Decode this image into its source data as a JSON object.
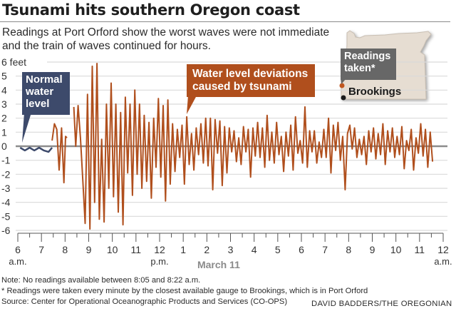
{
  "header": {
    "title": "Tsunami hits southern Oregon coast",
    "subtitle": "Readings at Port Orford show the worst waves were not immediate and the train of waves continued for hours."
  },
  "callouts": {
    "normal": "Normal water level",
    "tsunami": "Water level deviations caused by tsunami",
    "readings": "Readings taken*",
    "brookings": "Brookings"
  },
  "colors": {
    "tsunami": "#b04f1d",
    "normal": "#3d4a6b",
    "zero_line": "#8c8c8c",
    "grid": "#d9d9d9",
    "map_fill": "#e6ddd2",
    "readings_dot": "#c0561f",
    "brookings_dot": "#1a1a1a"
  },
  "footer": {
    "note1": "Note: No readings available between 8:05 and 8:22 a.m.",
    "note2": "* Readings were taken every minute by the closest available gauge to Brookings, which is in Port Orford",
    "source": "Source: Center for Operational Oceanographic Products and Services (CO-OPS)",
    "credit": "DAVID BADDERS/THE OREGONIAN"
  },
  "chart_data": {
    "type": "line",
    "title": "Tsunami hits southern Oregon coast",
    "xlabel": "March 11",
    "ylabel": "feet",
    "ylim": [
      -6,
      6
    ],
    "xlim_hours": [
      6,
      24
    ],
    "grid": true,
    "y_ticks": [
      "6 feet",
      "5",
      "4",
      "3",
      "2",
      "1",
      "0",
      "-1",
      "-2",
      "-3",
      "-4",
      "-5",
      "-6"
    ],
    "x_ticks": [
      {
        "label": "6",
        "sub": "a.m."
      },
      {
        "label": "7",
        "sub": ""
      },
      {
        "label": "8",
        "sub": ""
      },
      {
        "label": "9",
        "sub": ""
      },
      {
        "label": "10",
        "sub": ""
      },
      {
        "label": "11",
        "sub": ""
      },
      {
        "label": "12",
        "sub": "p.m."
      },
      {
        "label": "1",
        "sub": ""
      },
      {
        "label": "2",
        "sub": ""
      },
      {
        "label": "3",
        "sub": ""
      },
      {
        "label": "4",
        "sub": ""
      },
      {
        "label": "5",
        "sub": ""
      },
      {
        "label": "6",
        "sub": ""
      },
      {
        "label": "7",
        "sub": ""
      },
      {
        "label": "8",
        "sub": ""
      },
      {
        "label": "9",
        "sub": ""
      },
      {
        "label": "10",
        "sub": ""
      },
      {
        "label": "11",
        "sub": ""
      },
      {
        "label": "12",
        "sub": "a.m."
      }
    ],
    "series": [
      {
        "name": "Normal water level",
        "color": "#3d4a6b",
        "x_hours": [
          6.1,
          6.3,
          6.5,
          6.7,
          6.9,
          7.1,
          7.3,
          7.45
        ],
        "values": [
          -0.1,
          -0.3,
          -0.1,
          -0.3,
          -0.1,
          -0.3,
          -0.4,
          -0.1
        ]
      },
      {
        "name": "Water level deviations caused by tsunami",
        "color": "#b04f1d",
        "segments": [
          {
            "x_hours": [
              7.45,
              7.55,
              7.65,
              7.75,
              7.85,
              7.95,
              8.02,
              8.08
            ],
            "values": [
              0.4,
              1.6,
              1.2,
              -1.7,
              1.3,
              -2.6,
              0.7,
              0.6
            ]
          },
          {
            "x_hours": [
              8.37,
              8.45,
              8.55,
              8.65,
              8.75,
              8.85,
              8.95,
              9.05,
              9.15,
              9.25,
              9.35,
              9.45,
              9.55,
              9.65,
              9.75,
              9.85,
              9.95,
              10.05,
              10.15,
              10.25,
              10.35,
              10.45,
              10.55,
              10.65,
              10.75,
              10.85,
              10.95,
              11.05,
              11.15,
              11.25,
              11.35,
              11.45,
              11.55,
              11.65,
              11.75,
              11.85,
              11.95,
              12.05,
              12.15,
              12.25,
              12.35,
              12.45,
              12.55,
              12.65,
              12.75,
              12.85,
              12.95,
              13.05,
              13.15,
              13.25,
              13.35,
              13.45,
              13.55,
              13.65,
              13.75,
              13.85,
              13.95,
              14.05,
              14.15,
              14.25,
              14.35,
              14.45,
              14.55,
              14.65,
              14.75,
              14.85,
              14.95,
              15.05,
              15.15,
              15.25,
              15.35,
              15.45,
              15.55,
              15.65,
              15.75,
              15.85,
              15.95,
              16.05,
              16.15,
              16.25,
              16.35,
              16.45,
              16.55,
              16.65,
              16.75,
              16.85,
              16.95,
              17.05,
              17.15,
              17.25,
              17.35,
              17.45,
              17.55,
              17.65,
              17.75,
              17.85,
              17.95,
              18.05,
              18.15,
              18.25,
              18.35,
              18.45,
              18.55,
              18.65,
              18.75,
              18.85,
              18.95,
              19.05,
              19.15,
              19.25,
              19.35,
              19.45,
              19.55,
              19.65,
              19.75,
              19.85,
              19.95,
              20.05,
              20.15,
              20.25,
              20.35,
              20.45,
              20.55,
              20.65,
              20.75,
              20.85,
              20.95,
              21.05,
              21.15,
              21.25,
              21.35,
              21.45,
              21.55,
              21.65,
              21.75,
              21.85,
              21.95,
              22.05,
              22.15,
              22.25,
              22.35,
              22.45,
              22.55,
              22.65,
              22.75,
              22.85,
              22.95,
              23.05,
              23.15,
              23.25,
              23.35,
              23.45,
              23.55,
              23.65,
              23.75,
              23.85,
              23.95
            ],
            "values": [
              2.8,
              0.0,
              2.9,
              0.6,
              -2.4,
              -5.5,
              3.7,
              -5.9,
              5.7,
              -4.0,
              5.9,
              -5.2,
              0.5,
              -5.4,
              3.0,
              -3.0,
              4.5,
              -3.6,
              3.0,
              -4.7,
              2.4,
              -5.6,
              3.5,
              -1.9,
              3.0,
              -3.5,
              4.0,
              -2.0,
              3.0,
              -3.0,
              2.2,
              -2.5,
              1.7,
              -3.7,
              2.0,
              -1.5,
              3.4,
              -2.2,
              2.9,
              -3.9,
              3.3,
              -2.7,
              1.6,
              -1.8,
              1.2,
              -0.8,
              1.5,
              -2.7,
              2.1,
              -1.3,
              0.9,
              -1.7,
              1.3,
              -0.6,
              1.6,
              -1.2,
              2.0,
              -1.4,
              2.0,
              -3.1,
              1.9,
              -0.5,
              1.8,
              -2.8,
              1.4,
              -1.9,
              1.3,
              -0.4,
              1.1,
              -1.1,
              0.6,
              -1.3,
              1.4,
              -0.4,
              1.2,
              -2.2,
              1.3,
              -0.7,
              1.7,
              -0.8,
              1.3,
              -1.5,
              2.2,
              -1.0,
              1.0,
              -1.2,
              1.7,
              -0.6,
              0.7,
              -1.8,
              1.0,
              -0.7,
              1.5,
              -1.7,
              2.1,
              -0.5,
              0.4,
              -1.2,
              2.8,
              -1.5,
              1.1,
              -0.4,
              1.1,
              -1.2,
              0.3,
              -0.8,
              1.2,
              -0.8,
              2.0,
              -1.9,
              1.5,
              -0.3,
              1.7,
              -1.0,
              0.7,
              -3.1,
              0.9,
              1.5,
              -0.2,
              1.3,
              -0.8,
              0.5,
              -0.6,
              0.7,
              -1.3,
              1.1,
              -0.4,
              1.3,
              -0.9,
              0.9,
              -0.6,
              1.6,
              -1.3,
              1.1,
              -0.4,
              1.3,
              -0.8,
              0.7,
              -0.6,
              1.4,
              -1.6,
              0.4,
              -0.3,
              1.2,
              -1.7,
              0.6,
              -0.5,
              1.6,
              -0.7,
              1.2,
              -1.5,
              1.0,
              -1.1
            ]
          }
        ]
      }
    ]
  }
}
